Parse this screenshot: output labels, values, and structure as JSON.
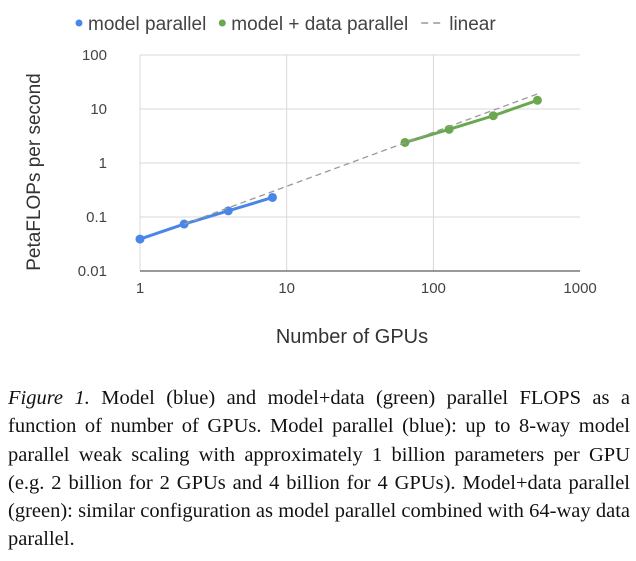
{
  "chart_data": {
    "type": "line",
    "title": "",
    "xlabel": "Number of GPUs",
    "ylabel": "PetaFLOPs per second",
    "xscale": "log",
    "yscale": "log",
    "xlim": [
      1,
      1000
    ],
    "ylim": [
      0.01,
      100
    ],
    "xticks": [
      "1",
      "10",
      "100",
      "1000"
    ],
    "xtick_values": [
      1,
      10,
      100,
      1000
    ],
    "yticks": [
      "100",
      "10",
      "1",
      "0.1",
      "0.01"
    ],
    "ytick_values": [
      100,
      10,
      1,
      0.1,
      0.01
    ],
    "grid": true,
    "legend_position": "top",
    "series": [
      {
        "name": "model parallel",
        "color": "#4a86e8",
        "style": "solid",
        "x": [
          1,
          2,
          4,
          8
        ],
        "y": [
          0.039,
          0.074,
          0.13,
          0.23
        ]
      },
      {
        "name": "model + data parallel",
        "color": "#6aa84f",
        "style": "solid",
        "x": [
          64,
          128,
          256,
          512
        ],
        "y": [
          2.4,
          4.2,
          7.5,
          14.5
        ]
      },
      {
        "name": "linear",
        "color": "#999999",
        "style": "dashed",
        "x": [
          2,
          512
        ],
        "y": [
          0.074,
          19
        ]
      }
    ]
  },
  "caption": {
    "label": "Figure 1.",
    "text": " Model (blue) and model+data (green) parallel FLOPS as a function of number of GPUs. Model parallel (blue): up to 8-way model parallel weak scaling with approximately 1 billion parameters per GPU (e.g. 2 billion for 2 GPUs and 4 billion for 4 GPUs). Model+data parallel (green): similar configuration as model parallel combined with 64-way data parallel."
  }
}
